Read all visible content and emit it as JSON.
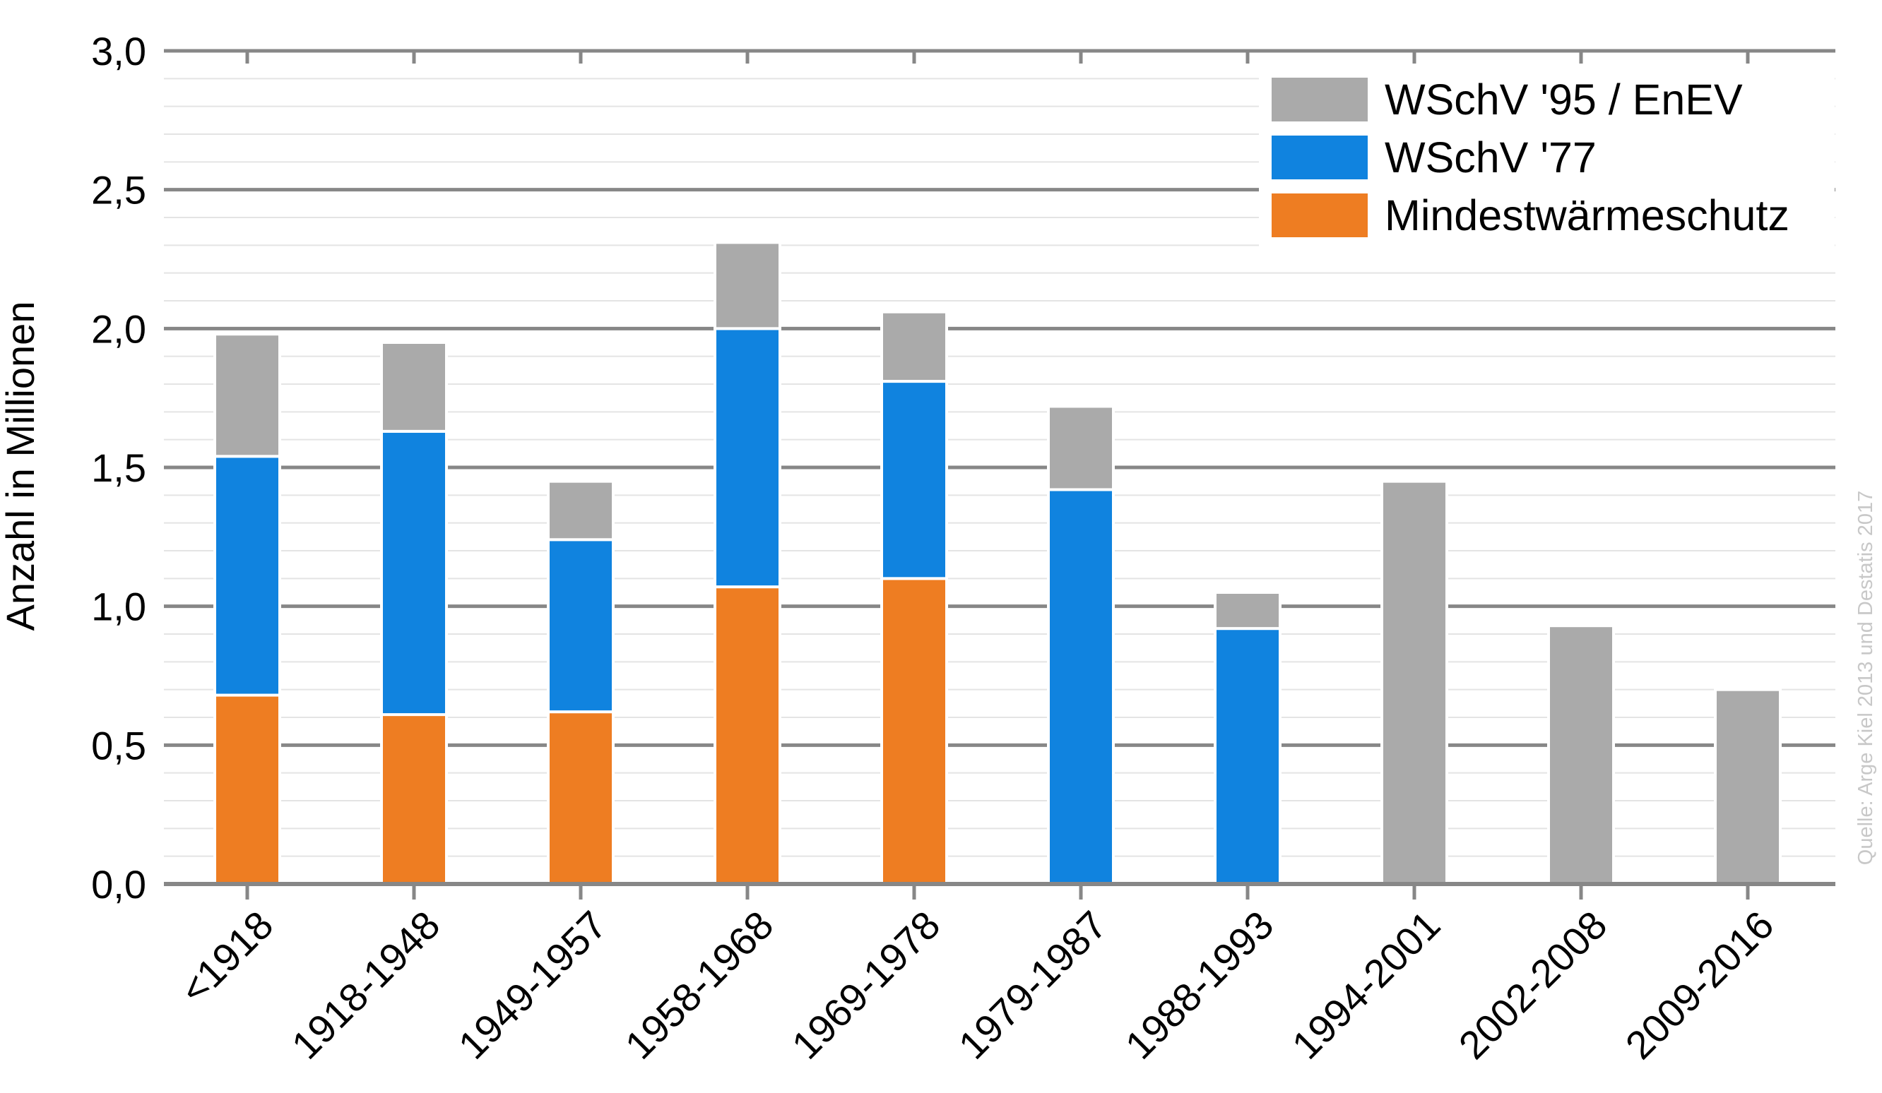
{
  "chart_data": {
    "type": "bar",
    "stacked": true,
    "ylabel": "Anzahl in Millionen",
    "ylim": [
      0,
      3.0
    ],
    "y_ticks": [
      {
        "value": 0,
        "label": "0,0"
      },
      {
        "value": 0.5,
        "label": "0,5"
      },
      {
        "value": 1.0,
        "label": "1,0"
      },
      {
        "value": 1.5,
        "label": "1,5"
      },
      {
        "value": 2.0,
        "label": "2,0"
      },
      {
        "value": 2.5,
        "label": "2,5"
      },
      {
        "value": 3.0,
        "label": "3,0"
      }
    ],
    "minor_grid_step": 0.1,
    "grid": true,
    "legend_position": "top-right",
    "categories": [
      "<1918",
      "1918-1948",
      "1949-1957",
      "1958-1968",
      "1969-1978",
      "1979-1987",
      "1988-1993",
      "1994-2001",
      "2002-2008",
      "2009-2016"
    ],
    "series": [
      {
        "name": "Mindestwärmeschutz",
        "color": "#ee7d22",
        "values": [
          0.68,
          0.61,
          0.62,
          1.07,
          1.1,
          0,
          0,
          0,
          0,
          0
        ]
      },
      {
        "name": "WSchV '77",
        "color": "#1083df",
        "values": [
          0.86,
          1.02,
          0.62,
          0.93,
          0.71,
          1.42,
          0.92,
          0,
          0,
          0
        ]
      },
      {
        "name": "WSchV '95 / EnEV",
        "color": "#aaaaaa",
        "values": [
          0.44,
          0.32,
          0.21,
          0.31,
          0.25,
          0.3,
          0.13,
          1.45,
          0.93,
          0.7
        ]
      }
    ],
    "legend_order": [
      "WSchV '95 / EnEV",
      "WSchV '77",
      "Mindestwärmeschutz"
    ],
    "source": "Quelle: Arge Kiel 2013 und Destatis 2017"
  }
}
